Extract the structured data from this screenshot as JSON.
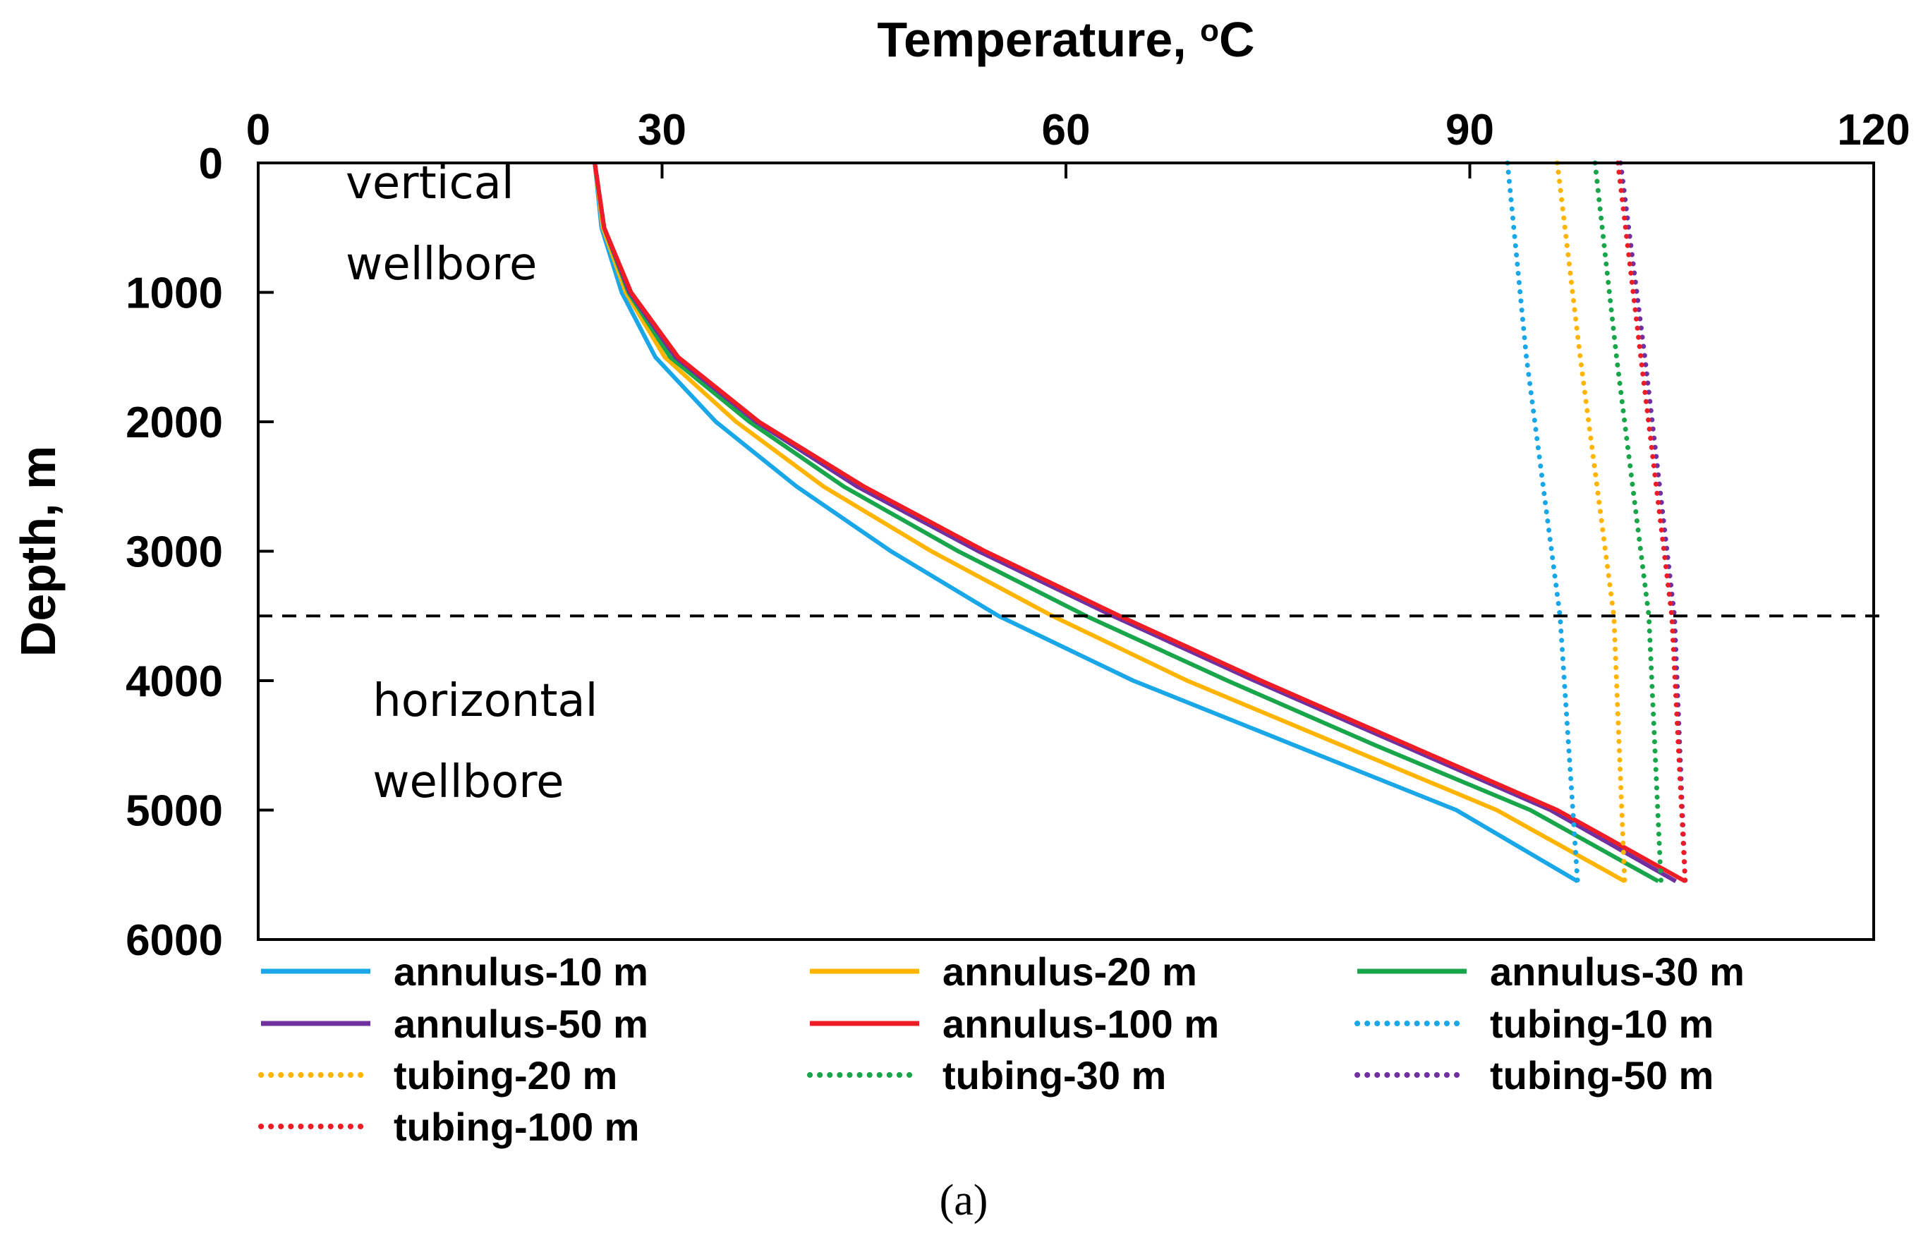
{
  "chart_data": {
    "type": "line",
    "xlabel": "Temperature, ",
    "xlabel_superscript": "o",
    "xlabel_unit": "C",
    "ylabel": "Depth, m",
    "xlim": [
      0,
      120
    ],
    "ylim": [
      0,
      6000
    ],
    "y_inverted": true,
    "x_axis_position": "top",
    "x_ticks": [
      "0",
      "30",
      "60",
      "90",
      "120"
    ],
    "y_ticks": [
      "0",
      "1000",
      "2000",
      "3000",
      "4000",
      "5000",
      "6000"
    ],
    "reference_line": {
      "y": 3500,
      "style": "dashed"
    },
    "annotations": [
      {
        "lines": [
          "vertical",
          "wellbore"
        ],
        "x": 6.5,
        "y": 500
      },
      {
        "lines": [
          "horizontal",
          "wellbore"
        ],
        "x": 8.5,
        "y": 4500
      }
    ],
    "legend_placement": "bottom",
    "caption": "(a)",
    "series": [
      {
        "name": "annulus-10 m",
        "color": "#1aa7e8",
        "dash": "solid",
        "points": [
          [
            25,
            0
          ],
          [
            25.5,
            500
          ],
          [
            27,
            1000
          ],
          [
            29.5,
            1500
          ],
          [
            34,
            2000
          ],
          [
            40,
            2500
          ],
          [
            47,
            3000
          ],
          [
            55,
            3500
          ],
          [
            65,
            4000
          ],
          [
            77,
            4500
          ],
          [
            89,
            5000
          ],
          [
            98,
            5550
          ]
        ]
      },
      {
        "name": "annulus-20 m",
        "color": "#ffb400",
        "dash": "solid",
        "points": [
          [
            25,
            0
          ],
          [
            25.6,
            500
          ],
          [
            27.3,
            1000
          ],
          [
            30.2,
            1500
          ],
          [
            35.5,
            2000
          ],
          [
            42,
            2500
          ],
          [
            50,
            3000
          ],
          [
            59,
            3500
          ],
          [
            69,
            4000
          ],
          [
            80.5,
            4500
          ],
          [
            92,
            5000
          ],
          [
            101.5,
            5550
          ]
        ]
      },
      {
        "name": "annulus-30 m",
        "color": "#19a64b",
        "dash": "solid",
        "points": [
          [
            25,
            0
          ],
          [
            25.7,
            500
          ],
          [
            27.5,
            1000
          ],
          [
            30.6,
            1500
          ],
          [
            36.5,
            2000
          ],
          [
            43.5,
            2500
          ],
          [
            52,
            3000
          ],
          [
            61.5,
            3500
          ],
          [
            72,
            4000
          ],
          [
            83,
            4500
          ],
          [
            94.5,
            5000
          ],
          [
            104,
            5550
          ]
        ]
      },
      {
        "name": "annulus-50 m",
        "color": "#7030a0",
        "dash": "solid",
        "points": [
          [
            25,
            0
          ],
          [
            25.7,
            500
          ],
          [
            27.6,
            1000
          ],
          [
            31,
            1500
          ],
          [
            37,
            2000
          ],
          [
            44.5,
            2500
          ],
          [
            53.5,
            3000
          ],
          [
            63.5,
            3500
          ],
          [
            74,
            4000
          ],
          [
            85,
            4500
          ],
          [
            96,
            5000
          ],
          [
            105.3,
            5550
          ]
        ]
      },
      {
        "name": "annulus-100 m",
        "color": "#ee1c25",
        "dash": "solid",
        "points": [
          [
            25,
            0
          ],
          [
            25.7,
            500
          ],
          [
            27.7,
            1000
          ],
          [
            31.2,
            1500
          ],
          [
            37.2,
            2000
          ],
          [
            45,
            2500
          ],
          [
            54,
            3000
          ],
          [
            64,
            3500
          ],
          [
            74.5,
            4000
          ],
          [
            85.5,
            4500
          ],
          [
            96.5,
            5000
          ],
          [
            106,
            5550
          ]
        ]
      },
      {
        "name": "tubing-10 m",
        "color": "#1aa7e8",
        "dash": "dotted",
        "points": [
          [
            92.8,
            0
          ],
          [
            94.2,
            1500
          ],
          [
            96.7,
            3500
          ],
          [
            98,
            5550
          ]
        ]
      },
      {
        "name": "tubing-20 m",
        "color": "#ffb400",
        "dash": "dotted",
        "points": [
          [
            96.5,
            0
          ],
          [
            98.2,
            1500
          ],
          [
            100.7,
            3500
          ],
          [
            101.5,
            5550
          ]
        ]
      },
      {
        "name": "tubing-30 m",
        "color": "#19a64b",
        "dash": "dotted",
        "points": [
          [
            99.3,
            0
          ],
          [
            100.9,
            1500
          ],
          [
            103.3,
            3500
          ],
          [
            104.2,
            5550
          ]
        ]
      },
      {
        "name": "tubing-50 m",
        "color": "#7030a0",
        "dash": "dotted",
        "points": [
          [
            101.2,
            0
          ],
          [
            103,
            1500
          ],
          [
            105.2,
            3500
          ],
          [
            106,
            5550
          ]
        ]
      },
      {
        "name": "tubing-100 m",
        "color": "#ee1c25",
        "dash": "dotted",
        "points": [
          [
            101,
            0
          ],
          [
            102.7,
            1500
          ],
          [
            105,
            3500
          ],
          [
            106,
            5550
          ]
        ]
      }
    ]
  }
}
